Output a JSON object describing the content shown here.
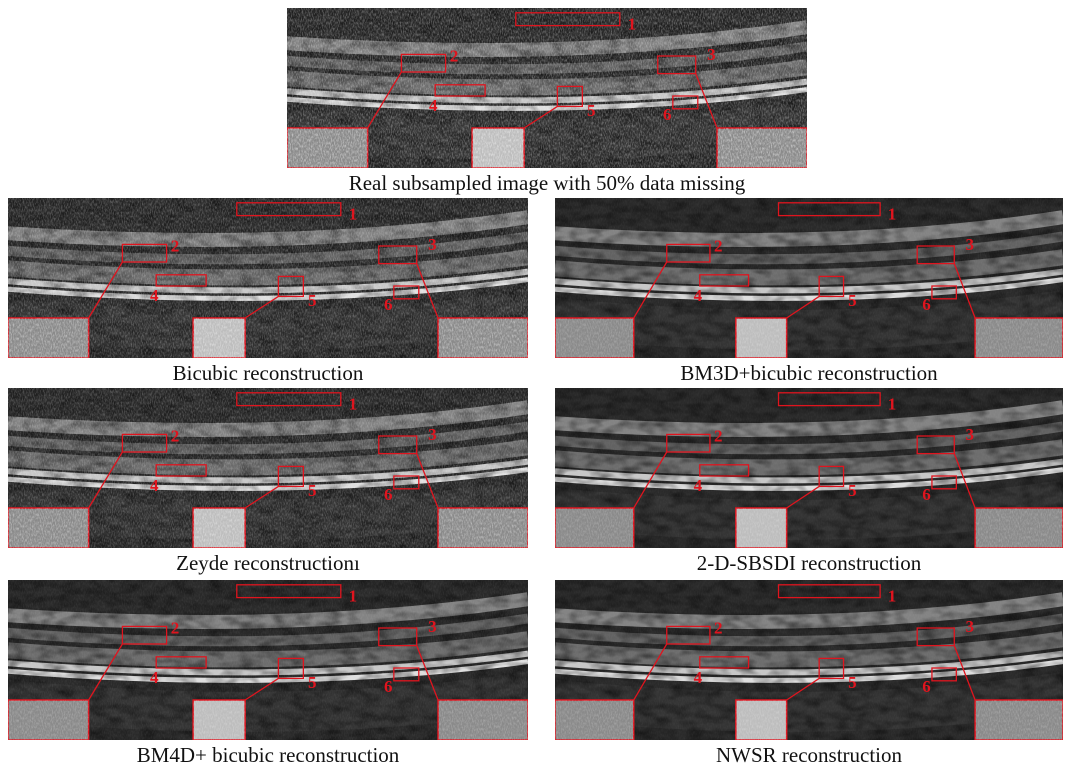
{
  "panels": [
    {
      "caption": "Real subsampled image with 50% data missing"
    },
    {
      "caption": "Bicubic reconstruction"
    },
    {
      "caption": "BM3D+bicubic reconstruction"
    },
    {
      "caption": "Zeyde reconstructionı"
    },
    {
      "caption": "2-D-SBSDI reconstruction"
    },
    {
      "caption": "BM4D+ bicubic reconstruction"
    },
    {
      "caption": "NWSR reconstruction"
    }
  ],
  "roi_labels": [
    "1",
    "2",
    "3",
    "4",
    "5",
    "6"
  ]
}
